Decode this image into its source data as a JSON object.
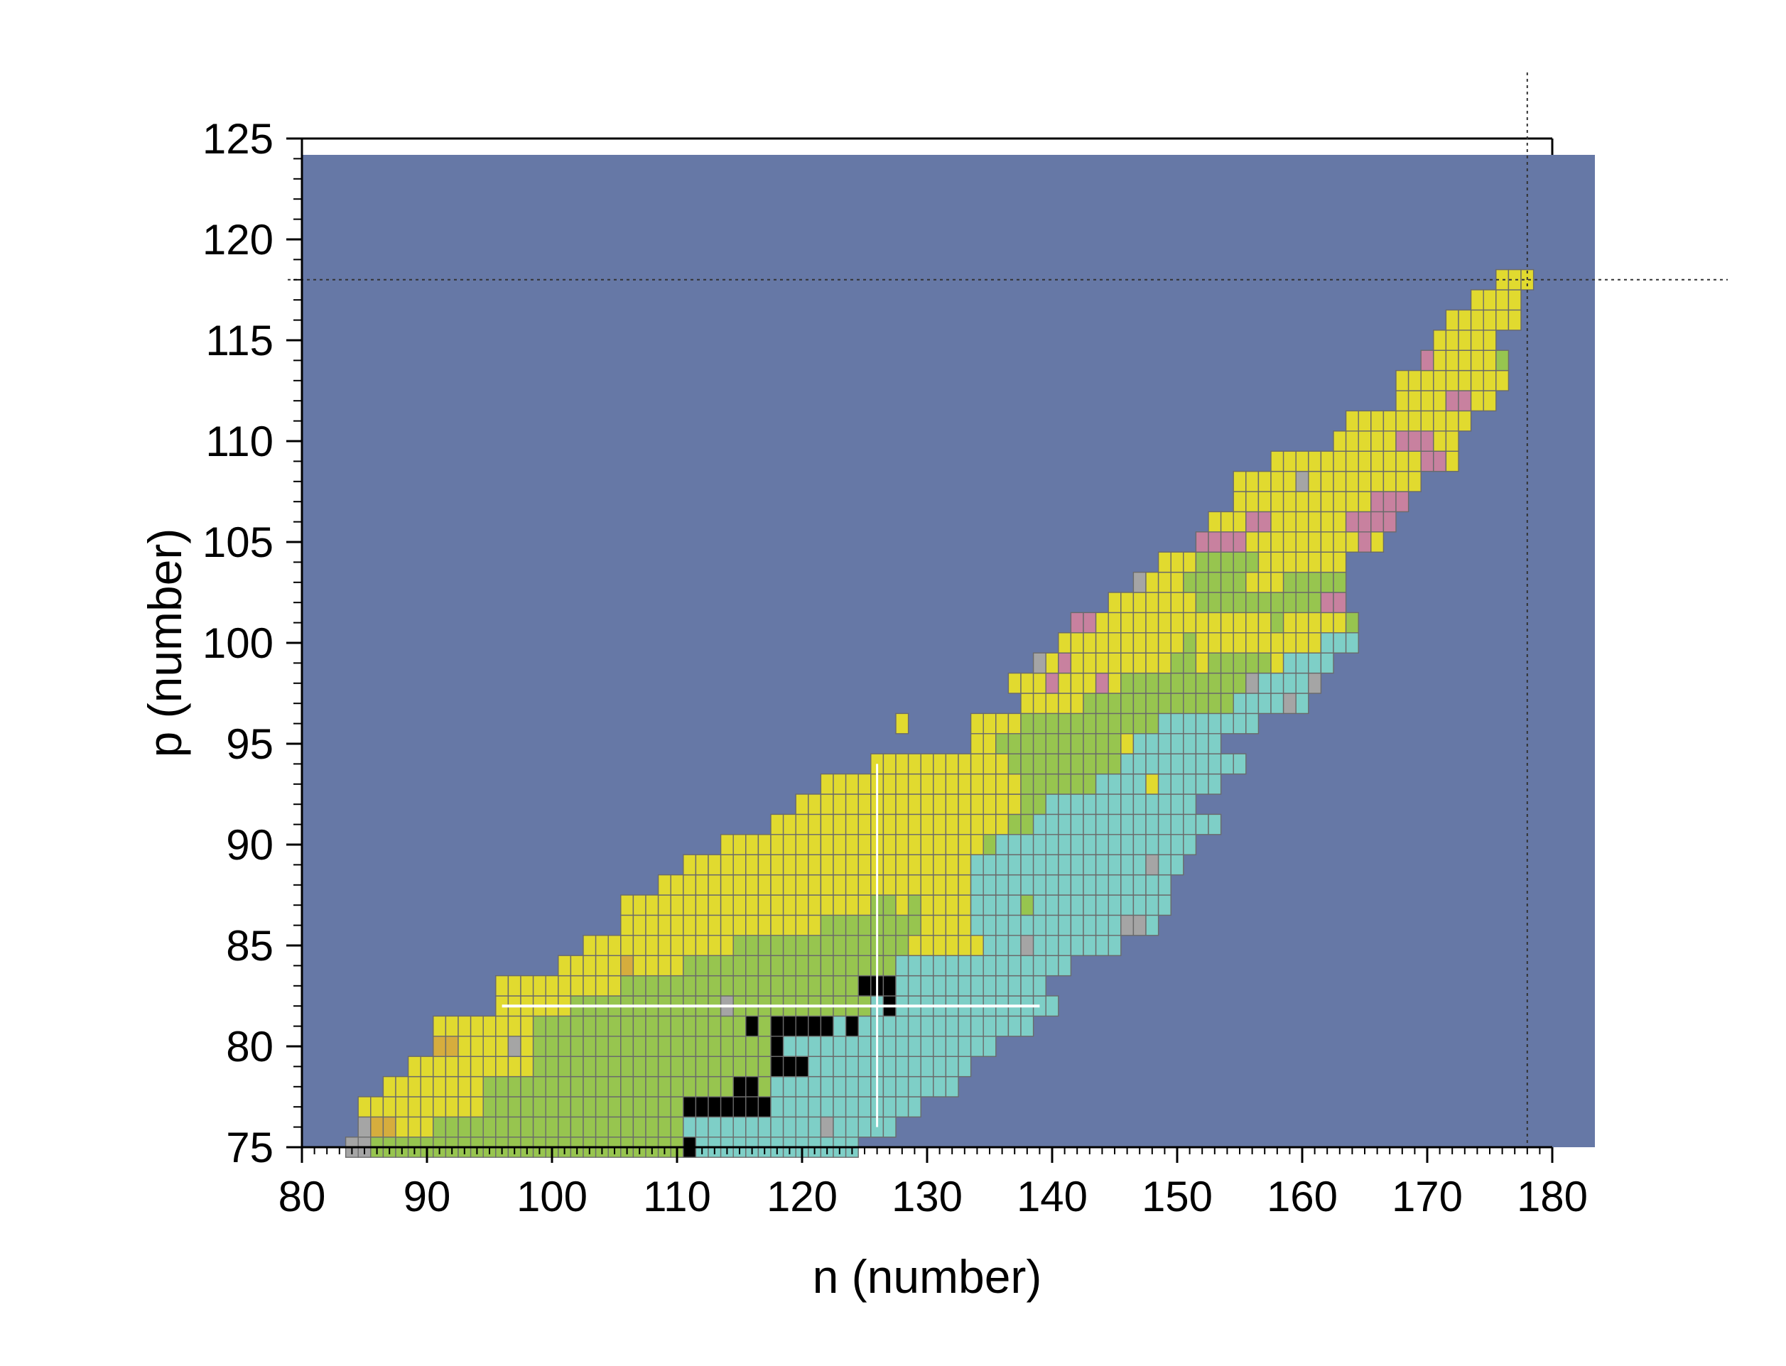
{
  "chart_data": {
    "type": "heatmap",
    "title": "",
    "xlabel": "n (number)",
    "ylabel": "p (number)",
    "xlim": [
      80,
      180
    ],
    "ylim": [
      75,
      125
    ],
    "xticks": [
      "80",
      "90",
      "100",
      "110",
      "120",
      "130",
      "140",
      "150",
      "160",
      "170",
      "180"
    ],
    "yticks": [
      "75",
      "80",
      "85",
      "90",
      "95",
      "100",
      "105",
      "110",
      "115",
      "120",
      "125"
    ],
    "grid": false,
    "legend": "none",
    "background_color": "#6678a6",
    "cell_border_color": "#6a6a6a",
    "palette": {
      "Y": "#e1da2f",
      "G": "#97c54f",
      "C": "#7ecfc7",
      "K": "#000000",
      "P": "#c8819f",
      "S": "#a5a5a5",
      "O": "#d6ad3d"
    },
    "reference_lines": {
      "magic_n": 126,
      "magic_p": 82,
      "dotted_n": 178,
      "dotted_p": 118
    },
    "cells": [
      {
        "p": 75,
        "n": [
          84,
          111
        ],
        "s": "SSGGGGGGGGGGGGGGGGGGGGGGGGGG"
      },
      {
        "p": 75,
        "n": [
          111,
          125
        ],
        "s": "KCCCCCCCCCCCCC"
      },
      {
        "p": 76,
        "n": [
          85,
          111
        ],
        "s": "SOOYYYGGGGGGGGGGGGGGGGGGGGG"
      },
      {
        "p": 76,
        "n": [
          111,
          127
        ],
        "s": "CCCCCCCCCCCSCCCCC"
      },
      {
        "p": 77,
        "n": [
          85,
          111
        ],
        "s": "YYYYYYYYYYGGGGGGGGGGGGGGGGYG"
      },
      {
        "p": 77,
        "n": [
          111,
          128
        ],
        "s": "KKKKKKKCCCCCCCCCCCC"
      },
      {
        "p": 78,
        "n": [
          87,
          115
        ],
        "s": "YYYYYYYYGGGGGGGGGGGGGGGGGGGGG"
      },
      {
        "p": 78,
        "n": [
          115,
          131
        ],
        "s": "KKGCCCCCCCCCCCCCCC"
      },
      {
        "p": 79,
        "n": [
          89,
          117
        ],
        "s": "YYYYYYYYYYGGGGGGGGGGGGGGGGGGG"
      },
      {
        "p": 79,
        "n": [
          117,
          133
        ],
        "s": "GKKKCCCCCCCCCCCCC"
      },
      {
        "p": 80,
        "n": [
          91,
          118
        ],
        "s": "OOYYYYSYGGGGGGGGGGGGGGGGGGG"
      },
      {
        "p": 80,
        "n": [
          118,
          135
        ],
        "s": "KCCCCCCCCCCCCCCCCC"
      },
      {
        "p": 81,
        "n": [
          91,
          116
        ],
        "s": "YYYYYYYYGGGGGGGGGGGGGGGGGG"
      },
      {
        "p": 81,
        "n": [
          116,
          138
        ],
        "s": "KGKKKKKCKCCCCCCCCCCCCCC"
      },
      {
        "p": 82,
        "n": [
          96,
          121
        ],
        "s": "YYYYYYGGGGGGGGGGGGSGGGGGGG"
      },
      {
        "p": 82,
        "n": [
          121,
          139
        ],
        "s": "GGGGGCKCCCCCCCCCCCCC"
      },
      {
        "p": 83,
        "n": [
          96,
          125
        ],
        "s": "YYYYYYYYYYGGGGGGGGGGGGGGGGGGG"
      },
      {
        "p": 83,
        "n": [
          125,
          139
        ],
        "s": "KKKCCCCCCCCCCCC"
      },
      {
        "p": 84,
        "n": [
          101,
          126
        ],
        "s": "YYYYYOYYYYGGGGGGGGGGGGGGGGG"
      },
      {
        "p": 84,
        "n": [
          126,
          140
        ],
        "s": "GGCCCCCCCCCCCCCC"
      },
      {
        "p": 85,
        "n": [
          103,
          135
        ],
        "s": "YYYYYYYYYYYYGGGGGGGGGGGGGGYYYYYYYY"
      },
      {
        "p": 85,
        "n": [
          135,
          145
        ],
        "s": "CCCSCCCCCCC"
      },
      {
        "p": 86,
        "n": [
          106,
          133
        ],
        "s": "YYYYYYYYYYYYYYYYGGGGGGGGYYYYYYY"
      },
      {
        "p": 86,
        "n": [
          133,
          147
        ],
        "s": "YCCCCCCCCCCCCSSC"
      },
      {
        "p": 87,
        "n": [
          106,
          134
        ],
        "s": "YYYYYYYYYYYYYYYYYYYYGGYGYYYYYYY"
      },
      {
        "p": 87,
        "n": [
          134,
          148
        ],
        "s": "CCCCGCCCCCCCCCCC"
      },
      {
        "p": 88,
        "n": [
          109,
          134
        ],
        "s": "YYYYYYYYYYYYYYYYYYYYYYYYYYY"
      },
      {
        "p": 88,
        "n": [
          134,
          148
        ],
        "s": "CCCCCCCCCCCCCCCC"
      },
      {
        "p": 89,
        "n": [
          111,
          134
        ],
        "s": "YYYYYYYYYYYYYYYYYYYYYYYYYY"
      },
      {
        "p": 89,
        "n": [
          134,
          149
        ],
        "s": "CCCCCCCCCCCCCCSCC"
      },
      {
        "p": 90,
        "n": [
          114,
          135
        ],
        "s": "YYYYYYYYYYYYYYYYYYYYYYYY"
      },
      {
        "p": 90,
        "n": [
          135,
          150
        ],
        "s": "GCCCCCCCCCCCCCCCC"
      },
      {
        "p": 91,
        "n": [
          118,
          137
        ],
        "s": "YYYYYYYYYYYYYYYYYYYYYY"
      },
      {
        "p": 91,
        "n": [
          137,
          152
        ],
        "s": "GGCCCCCCCCCCCCCCC"
      },
      {
        "p": 92,
        "n": [
          120,
          137
        ],
        "s": "YYYYYYYYYYYYYYYYYYYYY"
      },
      {
        "p": 92,
        "n": [
          137,
          152
        ],
        "s": "YGGCCCCCCCCCCCC"
      },
      {
        "p": 93,
        "n": [
          122,
          137
        ],
        "s": "YYYYYYYYYYYYYYYY"
      },
      {
        "p": 93,
        "n": [
          137,
          153
        ],
        "s": "YGGGGGGCCCCYCCCCC"
      },
      {
        "p": 94,
        "n": [
          126,
          137
        ],
        "s": "YYYYYYYYYYY"
      },
      {
        "p": 94,
        "n": [
          137,
          155
        ],
        "s": "GGGGGGGGGCCCCCCCCCC"
      },
      {
        "p": 95,
        "n": [
          134,
          154
        ],
        "s": "YYGGGGGGGGGGYCCCCCCC"
      },
      {
        "p": 96,
        "n": [
          128,
          141
        ],
        "s": "Y"
      },
      {
        "p": 96,
        "n": [
          134,
          157
        ],
        "s": "YYYYGGGGGGGGGGGCCCCCCCC"
      },
      {
        "p": 97,
        "n": [
          138,
          158
        ],
        "s": "YYYYYGGGGGGGGGGGGCCCCSC"
      },
      {
        "p": 98,
        "n": [
          137,
          160
        ],
        "s": "YYYPYYYPYGGGGGGGGGGSCCCCS"
      },
      {
        "p": 99,
        "n": [
          139,
          160
        ],
        "s": "SYPYYYYYYYYGGYGGGGGYCCCC"
      },
      {
        "p": 100,
        "n": [
          141,
          162
        ],
        "s": "YYYYYYYYYYGYYYYYYYYYYCCC"
      },
      {
        "p": 101,
        "n": [
          142,
          162
        ],
        "s": "PPYYYYYYYYYYYYYYGYYYYYGPP"
      },
      {
        "p": 102,
        "n": [
          145,
          161
        ],
        "s": "YYYYYYYGGGGGGGGGGPP"
      },
      {
        "p": 103,
        "n": [
          147,
          161
        ],
        "s": "SYYYGGGGGYYYGGGGGYPP"
      },
      {
        "p": 104,
        "n": [
          149,
          161
        ],
        "s": "YYYGGGGGYYYYYYYYPP"
      },
      {
        "p": 105,
        "n": [
          152,
          164
        ],
        "s": "PPPPYYYYYYYYYPY"
      },
      {
        "p": 106,
        "n": [
          153,
          165
        ],
        "s": "YYYPPYYYYYYPPPP"
      },
      {
        "p": 107,
        "n": [
          155,
          166
        ],
        "s": "YYYYYYYYYYYPPPY"
      },
      {
        "p": 108,
        "n": [
          155,
          168
        ],
        "s": "YYYYYSYYYYYYYYY"
      },
      {
        "p": 109,
        "n": [
          158,
          172
        ],
        "s": "YYYYYYYYYYYYPPY"
      },
      {
        "p": 110,
        "n": [
          163,
          173
        ],
        "s": "YYYYYPPPYY"
      },
      {
        "p": 111,
        "n": [
          164,
          174
        ],
        "s": "YYYYYYYYYY"
      },
      {
        "p": 112,
        "n": [
          168,
          175
        ],
        "s": "YYYYPPYY"
      },
      {
        "p": 113,
        "n": [
          168,
          177
        ],
        "s": "YYYYYYYYY"
      },
      {
        "p": 114,
        "n": [
          170,
          177
        ],
        "s": "PYYYYYG"
      },
      {
        "p": 115,
        "n": [
          171,
          176
        ],
        "s": "YYYYY"
      },
      {
        "p": 116,
        "n": [
          172,
          178
        ],
        "s": "YYYYYY"
      },
      {
        "p": 117,
        "n": [
          174,
          178
        ],
        "s": "YYYY"
      },
      {
        "p": 118,
        "n": [
          176,
          178
        ],
        "s": "YYY"
      }
    ]
  }
}
